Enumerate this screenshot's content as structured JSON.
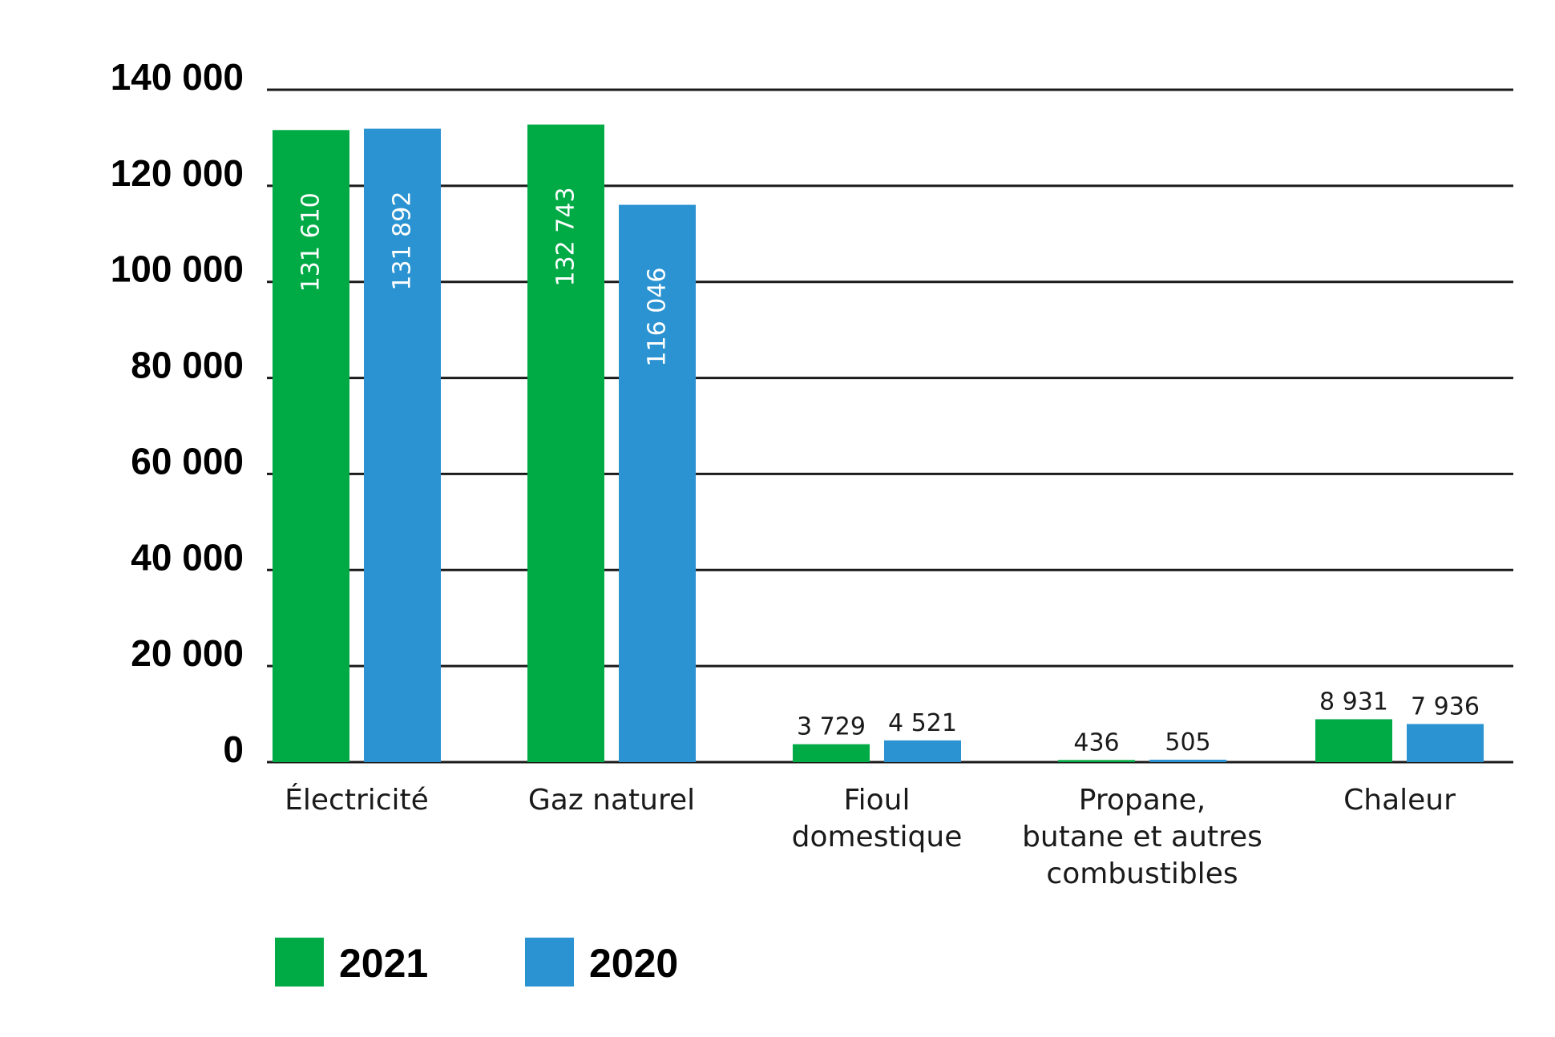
{
  "chart_data": {
    "type": "bar",
    "categories": [
      [
        "Électricité"
      ],
      [
        "Gaz naturel"
      ],
      [
        "Fioul",
        "domestique"
      ],
      [
        "Propane,",
        "butane et autres",
        "combustibles"
      ],
      [
        "Chaleur"
      ]
    ],
    "series": [
      {
        "name": "2021",
        "color": "#00aa45",
        "values": [
          131610,
          132743,
          3729,
          436,
          8931
        ],
        "labels": [
          "131 610",
          "132 743",
          "3 729",
          "436",
          "8 931"
        ]
      },
      {
        "name": "2020",
        "color": "#2b93d1",
        "values": [
          131892,
          116046,
          4521,
          505,
          7936
        ],
        "labels": [
          "131 892",
          "116 046",
          "4 521",
          "505",
          "7 936"
        ]
      }
    ],
    "ylim": [
      0,
      140000
    ],
    "yticks": [
      0,
      20000,
      40000,
      60000,
      80000,
      100000,
      120000,
      140000
    ],
    "ytick_labels": [
      "0",
      "20 000",
      "40 000",
      "60 000",
      "80 000",
      "100 000",
      "120 000",
      "140 000"
    ],
    "grid": true,
    "legend_position": "bottom-left",
    "xlabel": "",
    "ylabel": "",
    "title": ""
  }
}
